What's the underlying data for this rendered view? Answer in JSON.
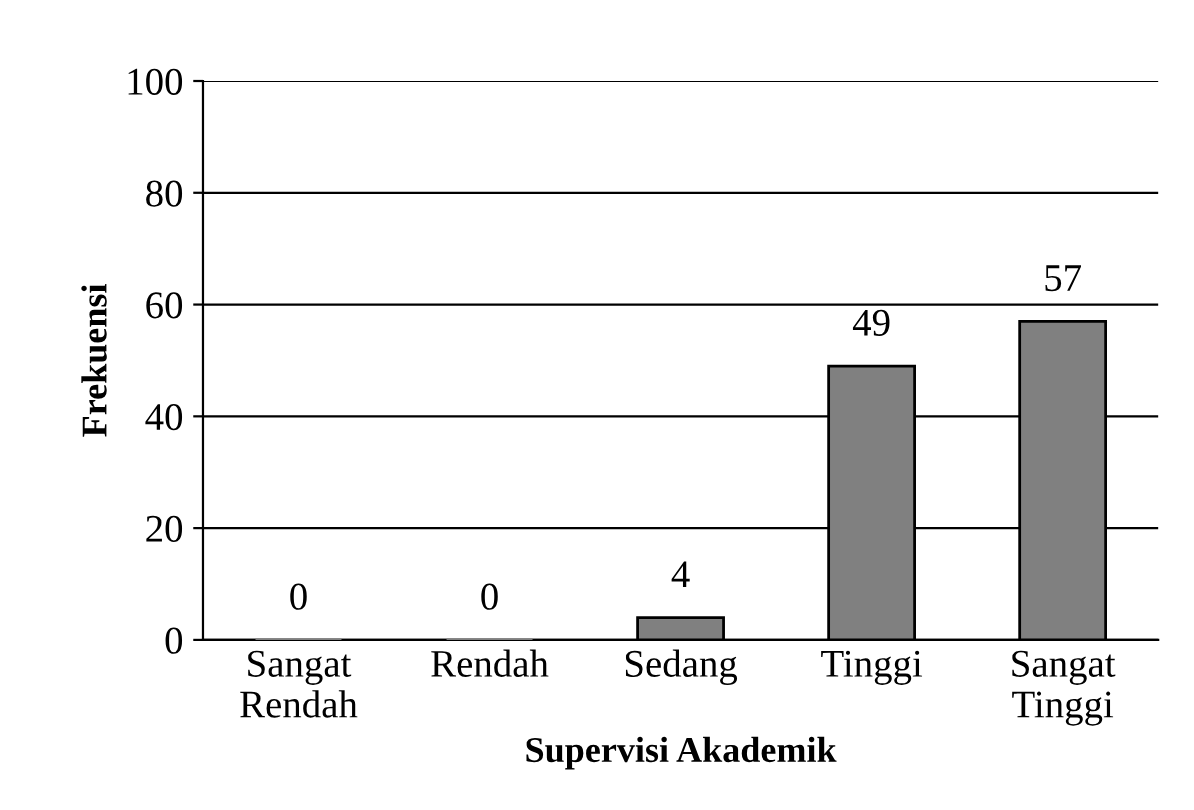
{
  "chart_data": {
    "type": "bar",
    "categories": [
      "Sangat\nRendah",
      "Rendah",
      "Sedang",
      "Tinggi",
      "Sangat\nTinggi"
    ],
    "values": [
      0,
      0,
      4,
      49,
      57
    ],
    "color": "#808080",
    "xlabel": "Supervisi Akademik",
    "ylabel": "Frekuensi",
    "ylim": [
      0,
      100
    ],
    "yticks": [
      0,
      20,
      40,
      60,
      80,
      100
    ],
    "grid": "y",
    "data_labels": true
  }
}
